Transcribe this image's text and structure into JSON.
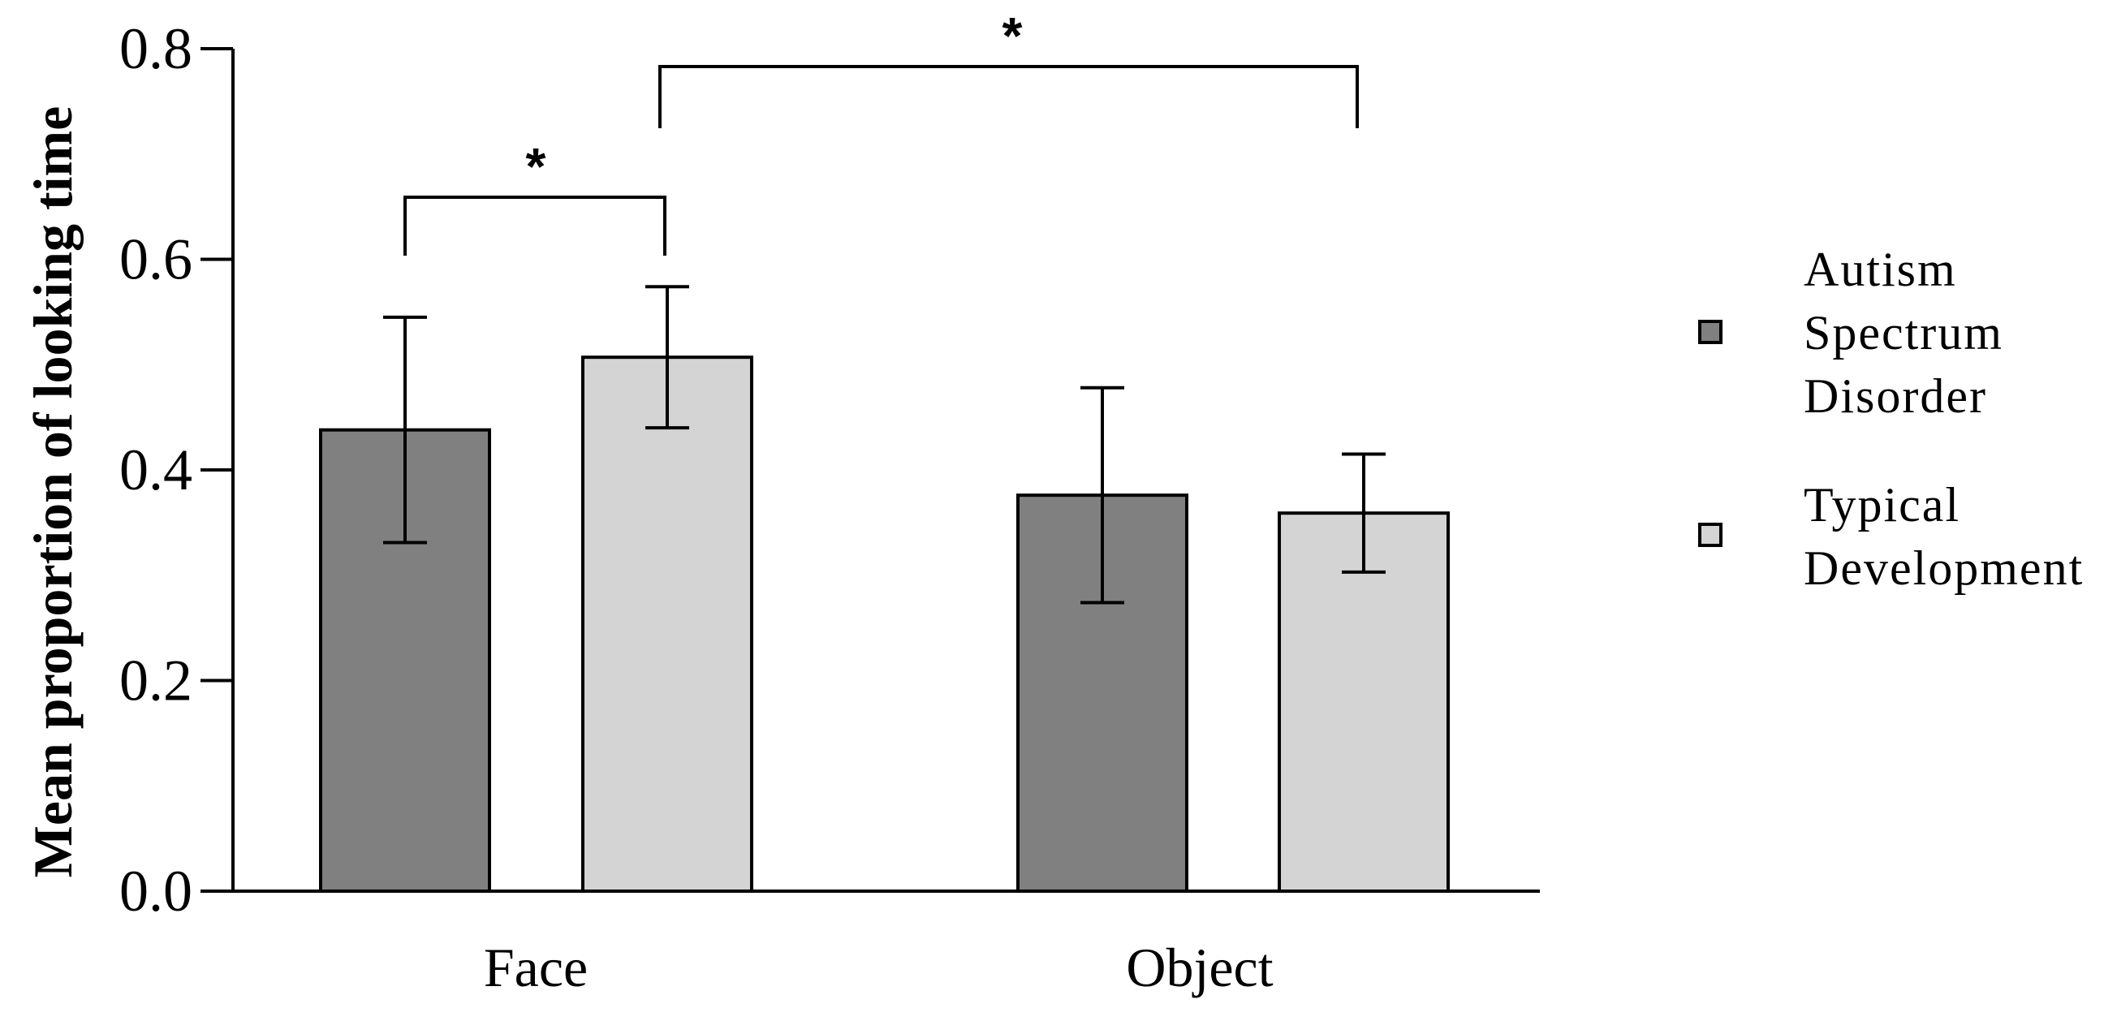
{
  "chart_data": {
    "type": "bar",
    "categories": [
      "Face",
      "Object"
    ],
    "ylabel": "Mean proportion of looking time",
    "xlabel": "",
    "ylim": [
      0,
      0.8
    ],
    "yticks": [
      "0.0",
      "0.2",
      "0.4",
      "0.6",
      "0.8"
    ],
    "series": [
      {
        "name": "Autism Spectrum Disorder",
        "name_lines": [
          "Autism",
          "Spectrum",
          "Disorder"
        ],
        "color": "#808080",
        "values": [
          0.438,
          0.376
        ],
        "error": [
          0.107,
          0.102
        ]
      },
      {
        "name": "Typical Development",
        "name_lines": [
          "Typical",
          "Development"
        ],
        "color": "#d4d4d4",
        "values": [
          0.507,
          0.359
        ],
        "error": [
          0.067,
          0.056
        ]
      }
    ],
    "significance": [
      {
        "from": "Face / Autism Spectrum Disorder",
        "to": "Face / Typical Development",
        "label": "*"
      },
      {
        "from": "Face / Typical Development",
        "to": "Object / Typical Development",
        "label": "*"
      }
    ],
    "legend_position": "right",
    "grid": false
  }
}
